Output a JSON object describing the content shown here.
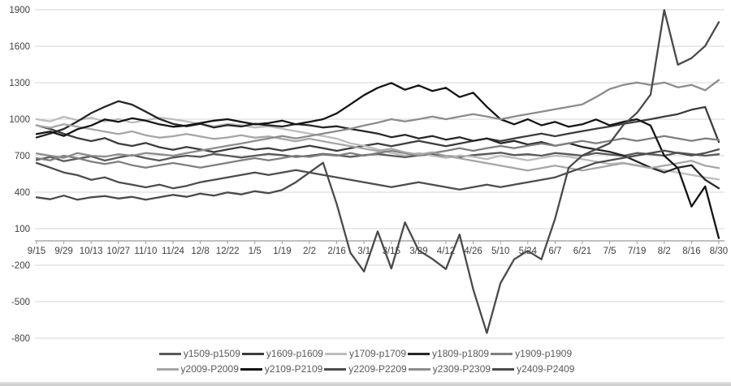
{
  "page": {
    "background": "#ffffff",
    "footer_strip_color": "#c7c7c7",
    "grid_color": "#d6d6d6",
    "axis_color": "#9b9b9b",
    "label_color": "#404040",
    "legend_text_color": "#595959"
  },
  "chart_data": {
    "type": "line",
    "title": "",
    "xlabel": "",
    "ylabel": "",
    "grid": true,
    "legend_position": "bottom",
    "legend_rows": 2,
    "ylim": [
      -800,
      1900
    ],
    "y_ticks": [
      1900,
      1600,
      1300,
      1000,
      700,
      400,
      100,
      -200,
      -500,
      -800
    ],
    "x_axis_at_value": 0,
    "x_tick_labels": [
      "9/15",
      "9/29",
      "10/13",
      "10/27",
      "11/10",
      "11/24",
      "12/8",
      "12/22",
      "1/5",
      "1/19",
      "2/2",
      "2/16",
      "3/1",
      "3/15",
      "3/29",
      "4/12",
      "4/26",
      "5/10",
      "5/24",
      "6/7",
      "6/21",
      "7/5",
      "7/19",
      "8/2",
      "8/16",
      "8/30"
    ],
    "points_per_tick_interval": 2,
    "series": [
      {
        "name": "y1509-p1509",
        "color": "#595959",
        "values": [
          665,
          690,
          655,
          675,
          695,
          660,
          685,
          705,
          680,
          660,
          685,
          700,
          690,
          715,
          700,
          685,
          700,
          715,
          705,
          690,
          700,
          715,
          705,
          690,
          705,
          715,
          700,
          688,
          702,
          712,
          698,
          690,
          705,
          715,
          725,
          705,
          712,
          700,
          722,
          712,
          700,
          722,
          710,
          698,
          722,
          712,
          700,
          725,
          712,
          700,
          712
        ]
      },
      {
        "name": "y1609-p1609",
        "color": "#3d3d3d",
        "values": [
          950,
          920,
          880,
          845,
          820,
          845,
          800,
          780,
          805,
          770,
          748,
          772,
          752,
          730,
          752,
          772,
          750,
          762,
          742,
          762,
          782,
          762,
          740,
          762,
          782,
          800,
          778,
          800,
          822,
          800,
          778,
          800,
          822,
          842,
          820,
          842,
          862,
          882,
          860,
          882,
          902,
          922,
          940,
          962,
          980,
          1000,
          1022,
          1042,
          1078,
          1100,
          812
        ]
      },
      {
        "name": "y1709-p1709",
        "color": "#bcbcbc",
        "values": [
          1000,
          982,
          1020,
          992,
          1012,
          982,
          1002,
          972,
          992,
          1012,
          1000,
          982,
          962,
          942,
          962,
          950,
          932,
          942,
          922,
          902,
          882,
          862,
          840,
          802,
          782,
          752,
          722,
          702,
          722,
          700,
          682,
          702,
          692,
          672,
          700,
          682,
          662,
          682,
          700,
          692,
          672,
          652,
          632,
          642,
          622,
          602,
          582,
          562,
          542,
          522,
          505
        ]
      },
      {
        "name": "y1809-p1809",
        "color": "#262626",
        "values": [
          850,
          882,
          920,
          982,
          1050,
          1102,
          1148,
          1120,
          1062,
          1002,
          962,
          942,
          962,
          932,
          952,
          940,
          962,
          950,
          940,
          960,
          950,
          932,
          942,
          920,
          902,
          882,
          852,
          872,
          842,
          862,
          832,
          852,
          822,
          842,
          802,
          822,
          792,
          812,
          782,
          802,
          772,
          752,
          732,
          702,
          652,
          602,
          562,
          602,
          622,
          502,
          432
        ]
      },
      {
        "name": "y1909-p1909",
        "color": "#7f7f7f",
        "values": [
          680,
          662,
          700,
          680,
          652,
          632,
          652,
          622,
          602,
          622,
          640,
          622,
          602,
          622,
          642,
          662,
          680,
          662,
          680,
          700,
          690,
          710,
          700,
          722,
          700,
          722,
          740,
          722,
          700,
          722,
          740,
          762,
          740,
          762,
          780,
          762,
          782,
          800,
          782,
          802,
          822,
          802,
          822,
          842,
          822,
          842,
          862,
          842,
          822,
          842,
          830
        ]
      },
      {
        "name": "y2009-P2009",
        "color": "#a6a6a6",
        "values": [
          948,
          930,
          958,
          938,
          918,
          898,
          878,
          900,
          868,
          848,
          860,
          878,
          858,
          838,
          850,
          868,
          848,
          858,
          838,
          818,
          840,
          818,
          798,
          778,
          758,
          738,
          758,
          728,
          708,
          728,
          698,
          678,
          658,
          638,
          618,
          598,
          578,
          598,
          618,
          598,
          578,
          598,
          618,
          638,
          618,
          598,
          618,
          638,
          658,
          618,
          598
        ]
      },
      {
        "name": "y2109-P2109",
        "color": "#141414",
        "values": [
          878,
          898,
          862,
          918,
          948,
          998,
          978,
          1008,
          988,
          958,
          938,
          948,
          968,
          988,
          1000,
          978,
          958,
          968,
          988,
          958,
          978,
          1000,
          1048,
          1122,
          1198,
          1258,
          1298,
          1242,
          1278,
          1232,
          1258,
          1182,
          1218,
          1102,
          1000,
          958,
          1000,
          950,
          978,
          938,
          958,
          998,
          950,
          978,
          1000,
          948,
          700,
          598,
          282,
          448,
          22
        ]
      },
      {
        "name": "y2209-P2209",
        "color": "#4d4d4d",
        "values": [
          640,
          602,
          562,
          540,
          502,
          522,
          482,
          462,
          440,
          462,
          432,
          452,
          482,
          502,
          522,
          542,
          562,
          542,
          562,
          582,
          562,
          542,
          522,
          502,
          482,
          462,
          442,
          462,
          482,
          462,
          442,
          422,
          442,
          462,
          442,
          462,
          482,
          502,
          522,
          562,
          602,
          642,
          662,
          682,
          702,
          722,
          742,
          722,
          702,
          722,
          752
        ]
      },
      {
        "name": "y2309-P2309",
        "color": "#8c8c8c",
        "values": [
          718,
          700,
          682,
          722,
          700,
          692,
          712,
          700,
          722,
          712,
          700,
          722,
          742,
          762,
          782,
          800,
          822,
          842,
          862,
          842,
          862,
          882,
          902,
          922,
          948,
          972,
          1000,
          982,
          1000,
          1022,
          1000,
          1022,
          1042,
          1022,
          1000,
          1022,
          1042,
          1062,
          1082,
          1102,
          1122,
          1182,
          1248,
          1282,
          1302,
          1282,
          1302,
          1262,
          1282,
          1238,
          1322
        ]
      },
      {
        "name": "y2409-P2409",
        "color": "#4a4a4a",
        "values": [
          358,
          342,
          372,
          338,
          358,
          368,
          348,
          362,
          338,
          358,
          378,
          362,
          388,
          372,
          398,
          382,
          408,
          392,
          418,
          482,
          562,
          642,
          302,
          -98,
          -252,
          78,
          -228,
          152,
          -78,
          -148,
          -232,
          52,
          -398,
          -758,
          -348,
          -152,
          -82,
          -152,
          182,
          602,
          702,
          752,
          802,
          952,
          1052,
          1202,
          1898,
          1448,
          1502,
          1602,
          1798
        ]
      }
    ]
  }
}
